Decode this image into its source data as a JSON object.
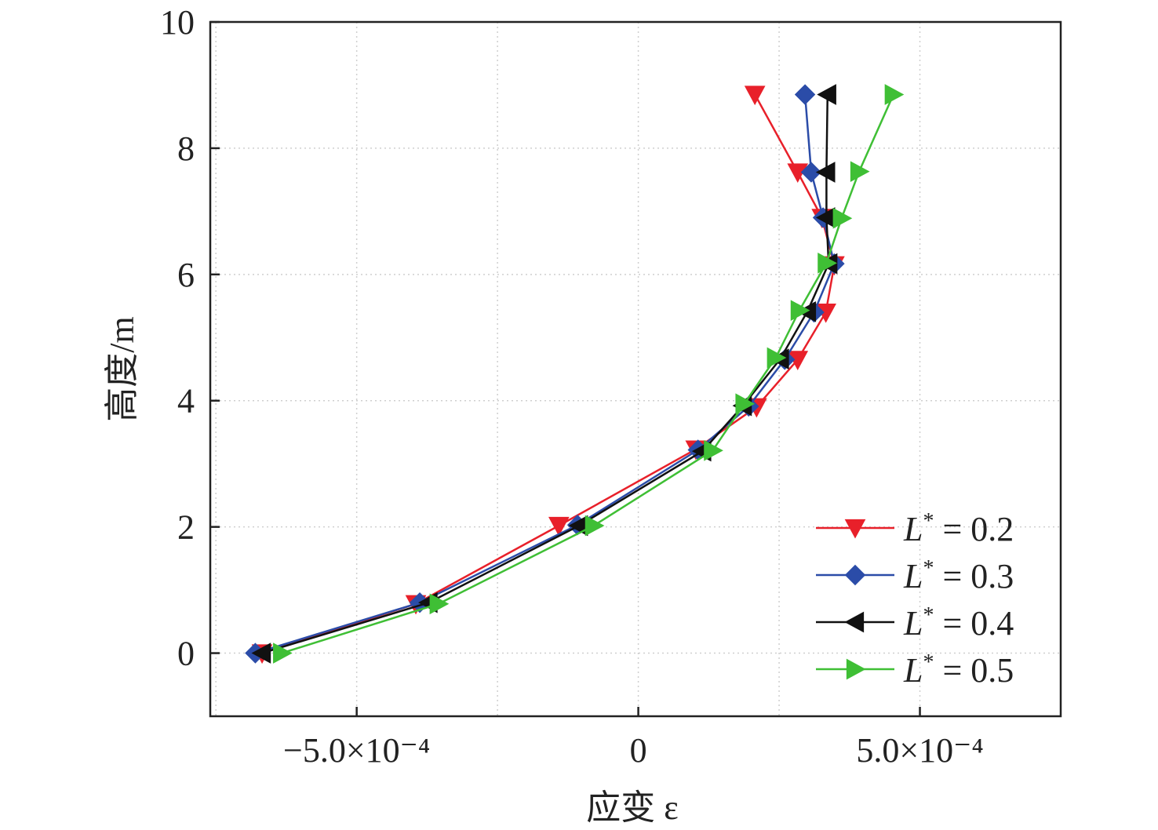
{
  "chart_data": {
    "type": "line",
    "xlabel": "应变 ε",
    "ylabel": "高度/m",
    "xlim": [
      -0.00076,
      0.00075
    ],
    "ylim": [
      -1,
      10
    ],
    "grid": true,
    "legend_position": "bottom-right",
    "x_ticks": [
      {
        "value": -0.0005,
        "label": "−5.0×10⁻⁴"
      },
      {
        "value": 0,
        "label": "0"
      },
      {
        "value": 0.0005,
        "label": "5.0×10⁻⁴"
      }
    ],
    "y_ticks": [
      {
        "value": 0,
        "label": "0"
      },
      {
        "value": 2,
        "label": "2"
      },
      {
        "value": 4,
        "label": "4"
      },
      {
        "value": 6,
        "label": "6"
      },
      {
        "value": 8,
        "label": "8"
      },
      {
        "value": 10,
        "label": "10"
      }
    ],
    "series": [
      {
        "name": "L* = 0.2",
        "legend_symbol": "L",
        "legend_sup": "*",
        "legend_rest": " = 0.2",
        "color": "#e8202a",
        "marker": "triangle-down",
        "points": [
          [
            -0.000668,
            0.0
          ],
          [
            -0.000395,
            0.78
          ],
          [
            -0.000141,
            2.02
          ],
          [
            0.000102,
            3.23
          ],
          [
            0.00021,
            3.9
          ],
          [
            0.000283,
            4.65
          ],
          [
            0.000333,
            5.4
          ],
          [
            0.000348,
            6.15
          ],
          [
            0.000326,
            6.9
          ],
          [
            0.000283,
            7.62
          ],
          [
            0.000207,
            8.85
          ]
        ]
      },
      {
        "name": "L* = 0.3",
        "legend_symbol": "L",
        "legend_sup": "*",
        "legend_rest": " = 0.3",
        "color": "#2b4ca8",
        "marker": "diamond",
        "points": [
          [
            -0.00068,
            0.0
          ],
          [
            -0.000388,
            0.8
          ],
          [
            -0.000108,
            2.03
          ],
          [
            0.000106,
            3.22
          ],
          [
            0.000196,
            3.91
          ],
          [
            0.00026,
            4.65
          ],
          [
            0.000312,
            5.4
          ],
          [
            0.000348,
            6.17
          ],
          [
            0.000328,
            6.9
          ],
          [
            0.000307,
            7.62
          ],
          [
            0.000296,
            8.85
          ]
        ]
      },
      {
        "name": "L* = 0.4",
        "legend_symbol": "L",
        "legend_sup": "*",
        "legend_rest": " = 0.4",
        "color": "#111111",
        "marker": "triangle-left",
        "points": [
          [
            -0.000668,
            0.0
          ],
          [
            -0.000372,
            0.8
          ],
          [
            -0.000105,
            2.02
          ],
          [
            0.000114,
            3.2
          ],
          [
            0.000186,
            3.92
          ],
          [
            0.000252,
            4.66
          ],
          [
            0.0003,
            5.41
          ],
          [
            0.000338,
            6.17
          ],
          [
            0.000334,
            6.9
          ],
          [
            0.000334,
            7.62
          ],
          [
            0.000336,
            8.85
          ]
        ]
      },
      {
        "name": "L* = 0.5",
        "legend_symbol": "L",
        "legend_sup": "*",
        "legend_rest": " = 0.5",
        "color": "#3fbf35",
        "marker": "triangle-right",
        "points": [
          [
            -0.000633,
            0.0
          ],
          [
            -0.000355,
            0.78
          ],
          [
            -7.9e-05,
            2.02
          ],
          [
            0.000132,
            3.21
          ],
          [
            0.000188,
            3.95
          ],
          [
            0.000244,
            4.68
          ],
          [
            0.000286,
            5.43
          ],
          [
            0.000334,
            6.18
          ],
          [
            0.000361,
            6.89
          ],
          [
            0.000392,
            7.63
          ],
          [
            0.000453,
            8.85
          ]
        ]
      }
    ]
  }
}
